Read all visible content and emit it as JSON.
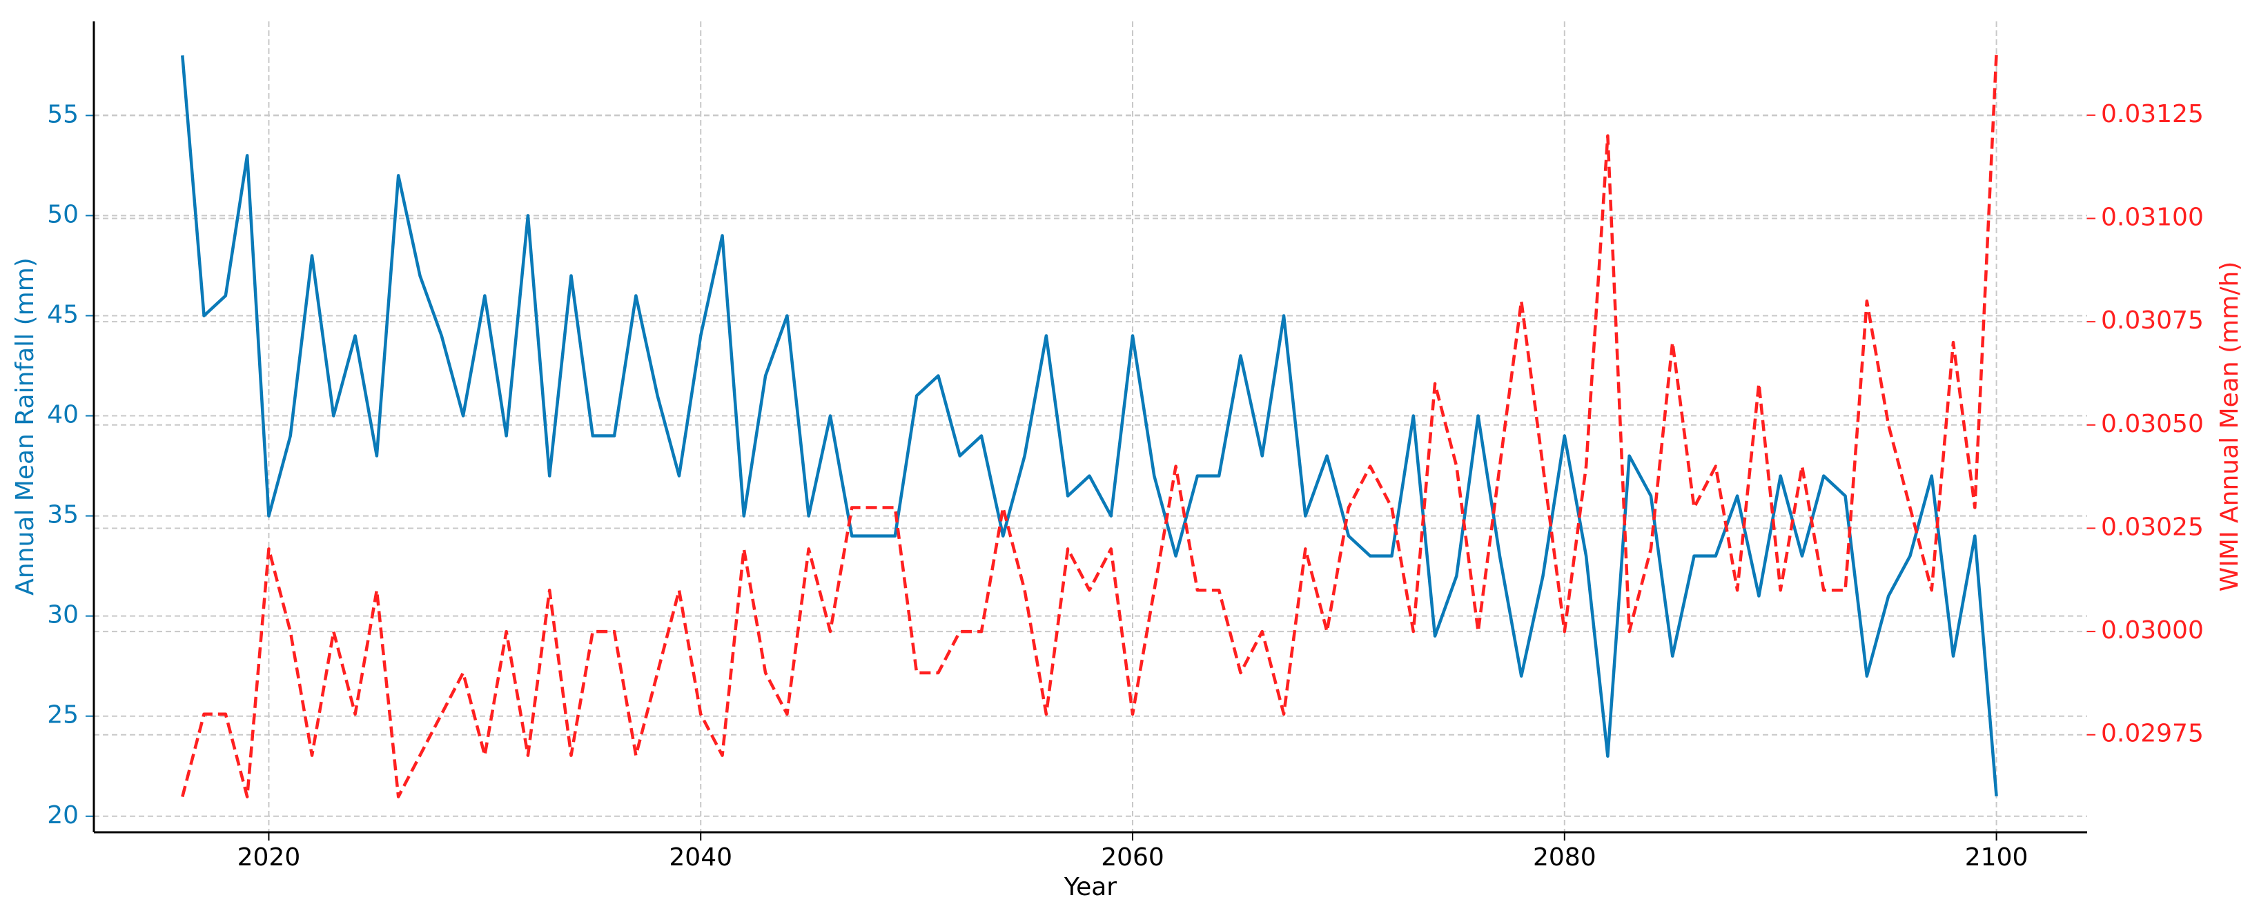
{
  "chart_data": {
    "type": "line",
    "xlabel": "Year",
    "ylabel": "Annual Mean Rainfall (mm)",
    "y2label": "WIMI Annual Mean (mm/h)",
    "x": [
      2016,
      2017,
      2018,
      2019,
      2020,
      2021,
      2022,
      2023,
      2024,
      2025,
      2026,
      2027,
      2028,
      2029,
      2030,
      2031,
      2032,
      2033,
      2034,
      2035,
      2036,
      2037,
      2038,
      2039,
      2040,
      2041,
      2042,
      2043,
      2044,
      2045,
      2046,
      2047,
      2048,
      2049,
      2050,
      2051,
      2052,
      2053,
      2054,
      2055,
      2056,
      2057,
      2058,
      2059,
      2060,
      2061,
      2062,
      2063,
      2064,
      2065,
      2066,
      2067,
      2068,
      2069,
      2070,
      2071,
      2072,
      2073,
      2074,
      2075,
      2076,
      2077,
      2078,
      2079,
      2080,
      2081,
      2082,
      2083,
      2084,
      2085,
      2086,
      2087,
      2088,
      2089,
      2090,
      2091,
      2092,
      2093,
      2094,
      2095,
      2096,
      2097,
      2098,
      2099,
      2100
    ],
    "series": [
      {
        "name": "Annual Mean Rainfall (mm)",
        "color": "#0a7ab8",
        "dash": false,
        "axis": "y",
        "values": [
          58,
          45,
          46,
          53,
          35,
          39,
          48,
          40,
          44,
          38,
          52,
          47,
          44,
          40,
          46,
          39,
          50,
          37,
          47,
          39,
          39,
          46,
          41,
          37,
          44,
          49,
          35,
          42,
          45,
          35,
          40,
          34,
          34,
          34,
          41,
          42,
          38,
          39,
          34,
          38,
          44,
          36,
          37,
          35,
          44,
          37,
          33,
          37,
          37,
          43,
          38,
          45,
          35,
          38,
          34,
          33,
          33,
          40,
          29,
          32,
          40,
          33,
          27,
          32,
          39,
          33,
          23,
          38,
          36,
          28,
          33,
          33,
          36,
          31,
          37,
          33,
          37,
          36,
          27,
          31,
          33,
          37,
          28,
          34,
          21
        ]
      },
      {
        "name": "WIMI Annual Mean (mm/h)",
        "color": "#ff2020",
        "dash": true,
        "axis": "y2",
        "values": [
          0.0296,
          0.0298,
          0.0298,
          0.0296,
          0.0302,
          0.03,
          0.0297,
          0.03,
          0.0298,
          0.0301,
          0.0296,
          0.0297,
          0.0298,
          0.0299,
          0.0297,
          0.03,
          0.0297,
          0.0301,
          0.0297,
          0.03,
          0.03,
          0.0297,
          0.0299,
          0.0301,
          0.0298,
          0.0297,
          0.0302,
          0.0299,
          0.0298,
          0.0302,
          0.03,
          0.0303,
          0.0303,
          0.0303,
          0.0299,
          0.0299,
          0.03,
          0.03,
          0.0303,
          0.0301,
          0.0298,
          0.0302,
          0.0301,
          0.0302,
          0.0298,
          0.0301,
          0.0304,
          0.0301,
          0.0301,
          0.0299,
          0.03,
          0.0298,
          0.0302,
          0.03,
          0.0303,
          0.0304,
          0.0303,
          0.03,
          0.0306,
          0.0304,
          0.03,
          0.0304,
          0.0308,
          0.0304,
          0.03,
          0.0304,
          0.0312,
          0.03,
          0.0302,
          0.0307,
          0.0303,
          0.0304,
          0.0301,
          0.0306,
          0.0301,
          0.0304,
          0.0301,
          0.0301,
          0.0308,
          0.0305,
          0.0303,
          0.0301,
          0.0307,
          0.0303,
          0.0314
        ]
      }
    ],
    "xlim": [
      2011.9,
      2104.2
    ],
    "xticks": [
      2020,
      2040,
      2060,
      2080,
      2100
    ],
    "ylim": [
      19.2,
      59.7
    ],
    "yticks": [
      20,
      25,
      30,
      35,
      40,
      45,
      50,
      55
    ],
    "y2lim": [
      0.029514,
      0.031477
    ],
    "y2ticks": [
      0.02975,
      {
        "value": 0.03,
        "label": "0.03000"
      },
      0.03025,
      {
        "value": 0.0305,
        "label": "0.03050"
      },
      0.03075,
      {
        "value": 0.031,
        "label": "0.03100"
      },
      0.03125
    ],
    "grid": true
  }
}
